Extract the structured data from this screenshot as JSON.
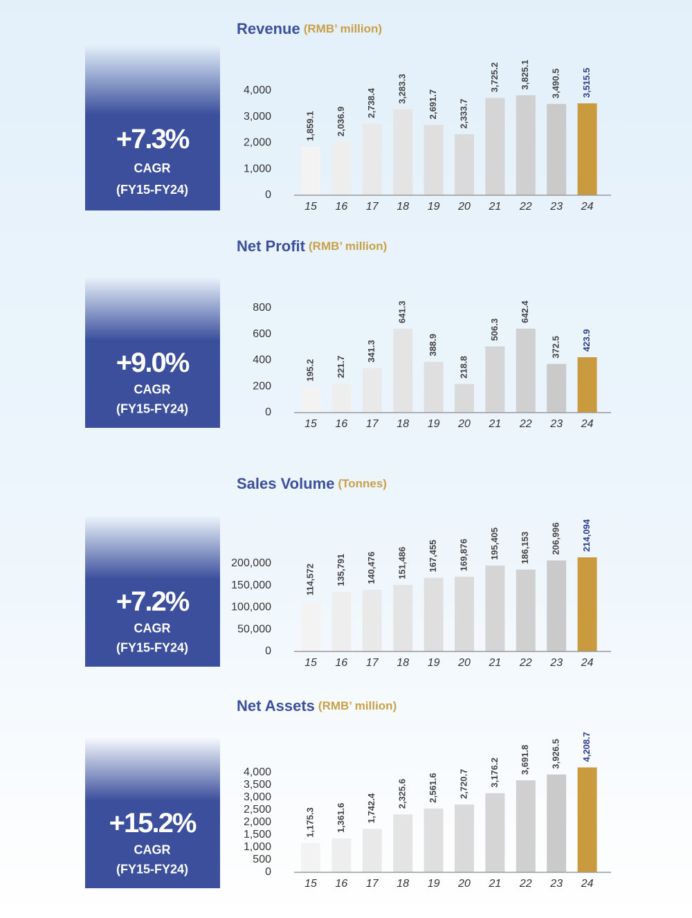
{
  "chart_data": [
    {
      "type": "bar",
      "title": "Revenue",
      "subtitle": "(RMB’ million)",
      "cagr": "+7.3%",
      "cagr_label": "CAGR",
      "cagr_period": "(FY15-FY24)",
      "categories": [
        "15",
        "16",
        "17",
        "18",
        "19",
        "20",
        "21",
        "22",
        "23",
        "24"
      ],
      "values": [
        1859.1,
        2036.9,
        2738.4,
        3283.3,
        2691.7,
        2333.7,
        3725.2,
        3825.1,
        3490.5,
        3515.5
      ],
      "value_labels": [
        "1,859.1",
        "2,036.9",
        "2,738.4",
        "3,283.3",
        "2,691.7",
        "2,333.7",
        "3,725.2",
        "3,825.1",
        "3,490.5",
        "3,515.5"
      ],
      "colors": [
        "#f3f3f3",
        "#eeeeee",
        "#e9e9e9",
        "#e4e4e4",
        "#dfdfdf",
        "#dadada",
        "#d5d5d5",
        "#d0d0d0",
        "#cacaca",
        "#c99a3e"
      ],
      "value_label_colors": [
        "#444444",
        "#444444",
        "#444444",
        "#444444",
        "#444444",
        "#444444",
        "#444444",
        "#444444",
        "#444444",
        "#2e3d8f"
      ],
      "ylim": [
        0,
        4000
      ],
      "yticks": [
        0,
        {
          "value": 1000,
          "label": "1,000"
        },
        {
          "value": 2000,
          "label": "2,000"
        },
        {
          "value": 3000,
          "label": "3,000"
        },
        {
          "value": 4000,
          "label": "4,000"
        }
      ]
    },
    {
      "type": "bar",
      "title": "Net Profit",
      "subtitle": "(RMB’ million)",
      "cagr": "+9.0%",
      "cagr_label": "CAGR",
      "cagr_period": "(FY15-FY24)",
      "categories": [
        "15",
        "16",
        "17",
        "18",
        "19",
        "20",
        "21",
        "22",
        "23",
        "24"
      ],
      "values": [
        195.2,
        221.7,
        341.3,
        641.3,
        388.9,
        218.8,
        506.3,
        642.4,
        372.5,
        423.9
      ],
      "colors": [
        "#f3f3f3",
        "#eeeeee",
        "#e9e9e9",
        "#e4e4e4",
        "#dfdfdf",
        "#dadada",
        "#d5d5d5",
        "#d0d0d0",
        "#cacaca",
        "#c99a3e"
      ],
      "value_label_colors": [
        "#444444",
        "#444444",
        "#444444",
        "#444444",
        "#444444",
        "#444444",
        "#444444",
        "#444444",
        "#444444",
        "#2e3d8f"
      ],
      "ylim": [
        0,
        800
      ],
      "yticks": [
        0,
        200,
        400,
        600,
        800
      ]
    },
    {
      "type": "bar",
      "title": "Sales Volume",
      "subtitle": "(Tonnes)",
      "cagr": "+7.2%",
      "cagr_label": "CAGR",
      "cagr_period": "(FY15-FY24)",
      "categories": [
        "15",
        "16",
        "17",
        "18",
        "19",
        "20",
        "21",
        "22",
        "23",
        "24"
      ],
      "values": [
        114572,
        135791,
        140476,
        151486,
        167455,
        169876,
        195405,
        186153,
        206996,
        214094
      ],
      "value_labels": [
        "114,572",
        "135,791",
        "140,476",
        "151,486",
        "167,455",
        "169,876",
        "195,405",
        "186,153",
        "206,996",
        "214,094"
      ],
      "colors": [
        "#f3f3f3",
        "#eeeeee",
        "#e9e9e9",
        "#e4e4e4",
        "#dfdfdf",
        "#dadada",
        "#d5d5d5",
        "#d0d0d0",
        "#cacaca",
        "#c99a3e"
      ],
      "value_label_colors": [
        "#444444",
        "#444444",
        "#444444",
        "#444444",
        "#444444",
        "#444444",
        "#444444",
        "#444444",
        "#444444",
        "#2e3d8f"
      ],
      "ylim": [
        0,
        200000
      ],
      "yticks": [
        0,
        {
          "value": 50000,
          "label": "50,000"
        },
        {
          "value": 100000,
          "label": "100,000"
        },
        {
          "value": 150000,
          "label": "150,000"
        },
        {
          "value": 200000,
          "label": "200,000"
        }
      ]
    },
    {
      "type": "bar",
      "title": "Net Assets",
      "subtitle": "(RMB’ million)",
      "cagr": "+15.2%",
      "cagr_label": "CAGR",
      "cagr_period": "(FY15-FY24)",
      "categories": [
        "15",
        "16",
        "17",
        "18",
        "19",
        "20",
        "21",
        "22",
        "23",
        "24"
      ],
      "values": [
        1175.3,
        1361.6,
        1742.4,
        2325.6,
        2561.6,
        2720.7,
        3176.2,
        3691.8,
        3926.5,
        4208.7
      ],
      "value_labels": [
        "1,175.3",
        "1,361.6",
        "1,742.4",
        "2,325.6",
        "2,561.6",
        "2,720.7",
        "3,176.2",
        "3,691.8",
        "3,926.5",
        "4,208.7"
      ],
      "colors": [
        "#f3f3f3",
        "#eeeeee",
        "#e9e9e9",
        "#e4e4e4",
        "#dfdfdf",
        "#dadada",
        "#d5d5d5",
        "#d0d0d0",
        "#cacaca",
        "#c99a3e"
      ],
      "value_label_colors": [
        "#444444",
        "#444444",
        "#444444",
        "#444444",
        "#444444",
        "#444444",
        "#444444",
        "#444444",
        "#444444",
        "#2e3d8f"
      ],
      "ylim": [
        0,
        4000
      ],
      "yticks": [
        0,
        500,
        {
          "value": 1000,
          "label": "1,000"
        },
        {
          "value": 1500,
          "label": "1,500"
        },
        {
          "value": 2000,
          "label": "2,000"
        },
        {
          "value": 2500,
          "label": "2,500"
        },
        {
          "value": 3000,
          "label": "3,000"
        },
        {
          "value": 3500,
          "label": "3,500"
        },
        {
          "value": 4000,
          "label": "4,000"
        }
      ]
    }
  ]
}
